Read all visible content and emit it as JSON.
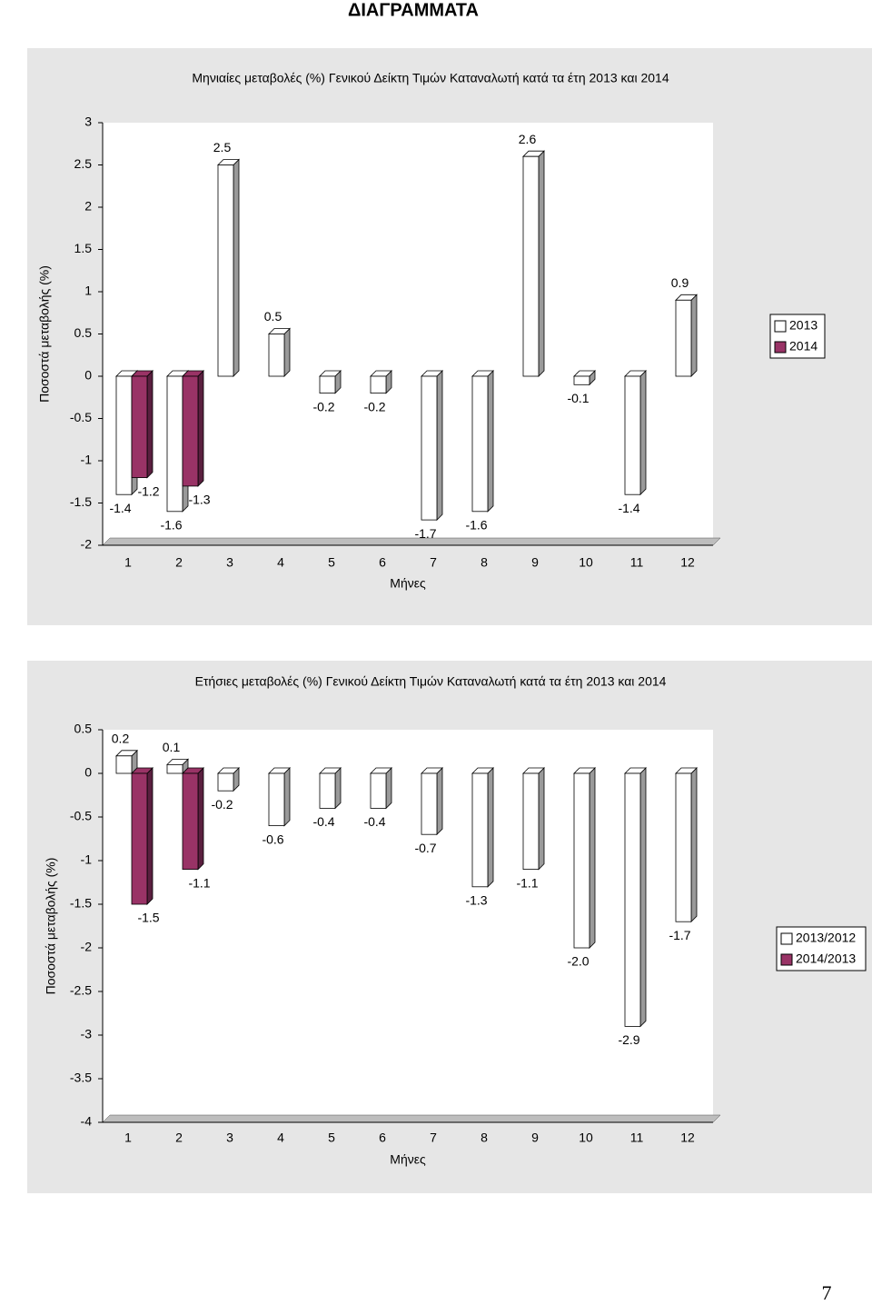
{
  "heading": "ΔΙΑΓΡΑΜΜΑΤΑ",
  "page_number": "7",
  "chart_data": [
    {
      "type": "bar",
      "title": "Μηνιαίες μεταβολές (%) Γενικού Δείκτη Τιμών Καταναλωτή κατά τα έτη 2013 και 2014",
      "x_label": "Μήνες",
      "y_label": "Ποσοστά μεταβολής (%)",
      "categories": [
        "1",
        "2",
        "3",
        "4",
        "5",
        "6",
        "7",
        "8",
        "9",
        "10",
        "11",
        "12"
      ],
      "series": [
        {
          "name": "2013",
          "color": "#ffffff",
          "values": [
            -1.4,
            -1.6,
            2.5,
            0.5,
            -0.2,
            -0.2,
            -1.7,
            -1.6,
            2.6,
            -0.1,
            -1.4,
            0.9
          ]
        },
        {
          "name": "2014",
          "color": "#993366",
          "values": [
            -1.2,
            -1.3,
            null,
            null,
            null,
            null,
            null,
            null,
            null,
            null,
            null,
            null
          ]
        }
      ],
      "ylim": [
        -2,
        3
      ],
      "yticks": [
        -2,
        -1.5,
        -1,
        -0.5,
        0,
        0.5,
        1,
        1.5,
        2,
        2.5,
        3
      ],
      "legend": "right"
    },
    {
      "type": "bar",
      "title": "Ετήσιες μεταβολές (%) Γενικού Δείκτη Τιμών Καταναλωτή κατά τα έτη 2013 και 2014",
      "x_label": "Μήνες",
      "y_label": "Ποσοστά μεταβολής (%)",
      "categories": [
        "1",
        "2",
        "3",
        "4",
        "5",
        "6",
        "7",
        "8",
        "9",
        "10",
        "11",
        "12"
      ],
      "series": [
        {
          "name": "2013/2012",
          "color": "#ffffff",
          "values": [
            0.2,
            0.1,
            -0.2,
            -0.6,
            -0.4,
            -0.4,
            -0.7,
            -1.3,
            -1.1,
            -2.0,
            -2.9,
            -1.7
          ],
          "value_labels": [
            "0.2",
            "0.1",
            "-0.2",
            "-0.6",
            "-0.4",
            "-0.4",
            "-0.7",
            "-1.3",
            "-1.1",
            "-2.0",
            "-2.9",
            "-1.7"
          ]
        },
        {
          "name": "2014/2013",
          "color": "#993366",
          "values": [
            -1.5,
            -1.1,
            null,
            null,
            null,
            null,
            null,
            null,
            null,
            null,
            null,
            null
          ]
        }
      ],
      "ylim": [
        -4,
        0.5
      ],
      "yticks": [
        -4,
        -3.5,
        -3,
        -2.5,
        -2,
        -1.5,
        -1,
        -0.5,
        0,
        0.5
      ],
      "legend": "right"
    }
  ]
}
